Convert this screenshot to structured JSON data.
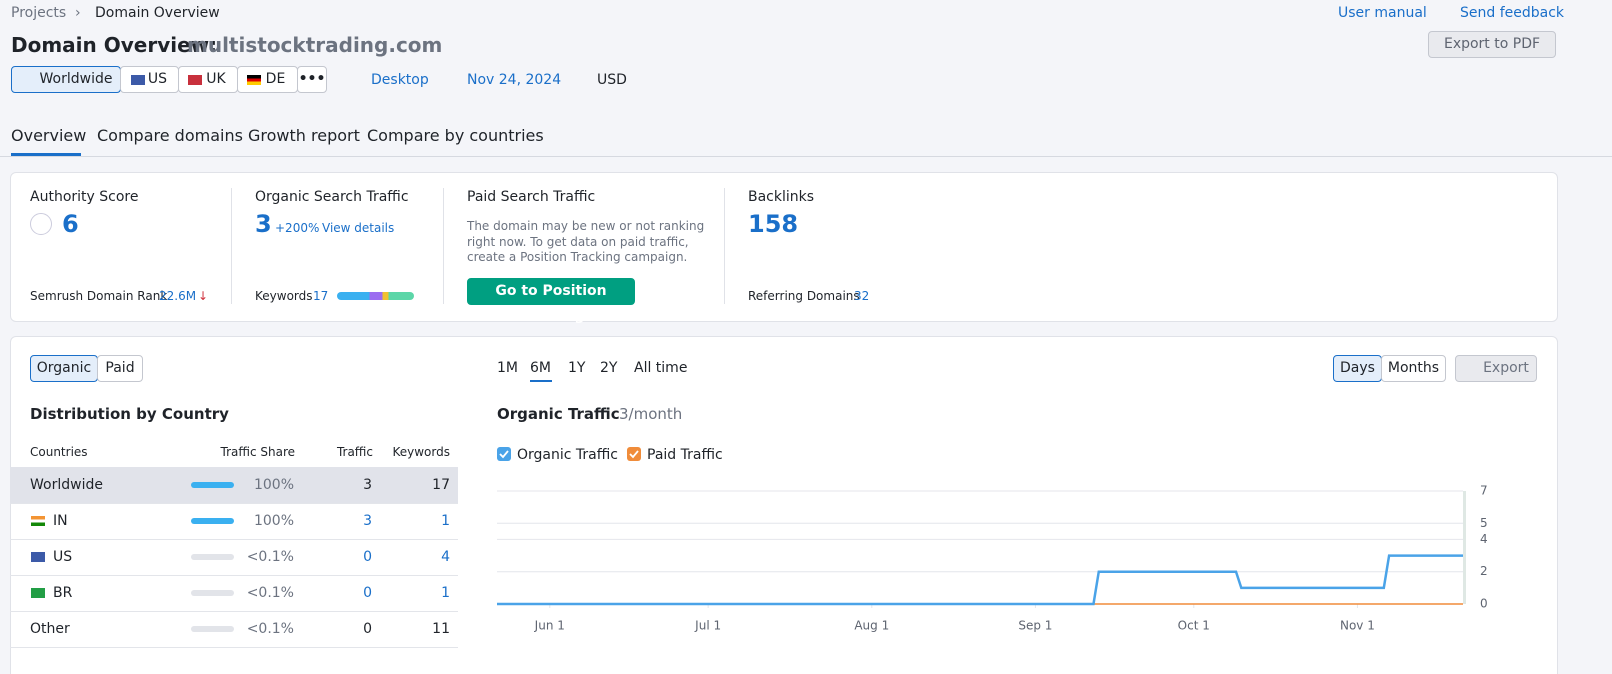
{
  "breadcrumb": [
    "Projects",
    "Domain Overview"
  ],
  "header_links": [
    "User manual",
    "Send feedback"
  ],
  "title": "Domain Overview:",
  "domain": "multistocktrading.com",
  "export_pdf": "Export to PDF",
  "db_tabs": [
    "Worldwide",
    "US",
    "UK",
    "DE"
  ],
  "device": "Desktop",
  "date": "Nov 24, 2024",
  "currency": "USD",
  "nav_tabs": [
    "Overview",
    "Compare domains",
    "Growth report",
    "Compare by countries"
  ],
  "summary": {
    "authority": {
      "label": "Authority Score",
      "value": 6,
      "rank_label": "Semrush Domain Rank",
      "rank": "22.6M"
    },
    "organic": {
      "label": "Organic Search Traffic",
      "value": 3,
      "change": "+200%",
      "link": "View details",
      "keywords_label": "Keywords",
      "keywords": 17
    },
    "paid": {
      "label": "Paid Search Traffic",
      "note": [
        "The domain may be new or not ranking",
        "right now. To get data on paid traffic,",
        "create a Position Tracking campaign."
      ],
      "button": "Go to Position Tracking"
    },
    "backlinks": {
      "label": "Backlinks",
      "value": 158,
      "ref_label": "Referring Domains",
      "ref": 32
    }
  },
  "toggle": [
    "Organic",
    "Paid"
  ],
  "periods": [
    "1M",
    "6M",
    "1Y",
    "2Y",
    "All time"
  ],
  "granularity": [
    "Days",
    "Months"
  ],
  "export": "Export",
  "distribution": {
    "title": "Distribution by Country",
    "columns": [
      "Countries",
      "Traffic Share",
      "Traffic",
      "Keywords"
    ],
    "rows": [
      {
        "country": "Worldwide",
        "share": "100%",
        "traffic": 3,
        "keywords": 17
      },
      {
        "country": "IN",
        "share": "100%",
        "traffic": 3,
        "keywords": 1
      },
      {
        "country": "US",
        "share": "<0.1%",
        "traffic": 0,
        "keywords": 4
      },
      {
        "country": "BR",
        "share": "<0.1%",
        "traffic": 0,
        "keywords": 1
      },
      {
        "country": "Other",
        "share": "<0.1%",
        "traffic": 0,
        "keywords": 11
      }
    ]
  },
  "traffic_chart": {
    "type": "line",
    "title": "Organic Traffic",
    "subtitle": "3/month",
    "x": [
      "May 22",
      "Sep 12",
      "Sep 13",
      "Oct 9",
      "Oct 10",
      "Nov 6",
      "Nov 7",
      "Nov 21"
    ],
    "series": [
      {
        "name": "Organic Traffic",
        "color": "#4aa3e8",
        "values": [
          0,
          0,
          2,
          2,
          1,
          1,
          3,
          3
        ]
      },
      {
        "name": "Paid Traffic",
        "color": "#f08c3a",
        "values": [
          0,
          0,
          0,
          0,
          0,
          0,
          0,
          0
        ]
      }
    ],
    "xlim": [
      "May 22",
      "Nov 21"
    ],
    "xticks": [
      "Jun 1",
      "Jul 1",
      "Aug 1",
      "Sep 1",
      "Oct 1",
      "Nov 1"
    ],
    "ylim": [
      0,
      7
    ],
    "yticks": [
      0,
      2,
      4,
      5,
      7
    ],
    "grid": true
  }
}
